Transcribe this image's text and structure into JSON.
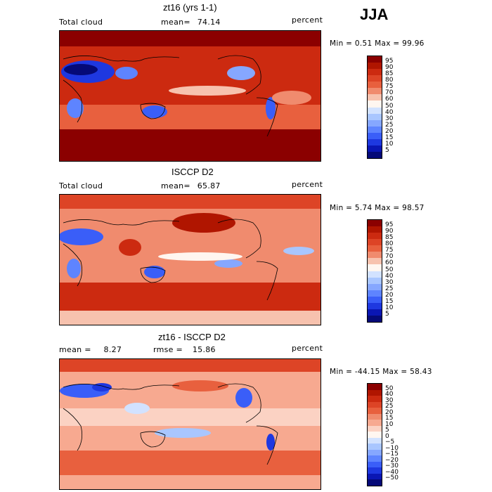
{
  "season": "JJA",
  "panels": [
    {
      "title": "zt16 (yrs 1-1)",
      "left_label": "Total cloud",
      "center_label": "mean=",
      "center_value": "74.14",
      "right_label": "percent",
      "minmax": "Min =    0.51 Max =   99.96",
      "colorbar": {
        "levels": [
          "95",
          "90",
          "85",
          "80",
          "75",
          "70",
          "60",
          "50",
          "40",
          "30",
          "25",
          "20",
          "15",
          "10",
          "5"
        ],
        "colors": [
          "#8b0000",
          "#b01500",
          "#cc2a10",
          "#dd4426",
          "#e8603e",
          "#f08b6e",
          "#f7c2ae",
          "#fff6f0",
          "#d2e2ff",
          "#a9c6ff",
          "#86a7ff",
          "#5e84ff",
          "#3a5ef8",
          "#1e38e0",
          "#0a16b4",
          "#050a78"
        ]
      }
    },
    {
      "title": "ISCCP D2",
      "left_label": "Total cloud",
      "center_label": "mean=",
      "center_value": "65.87",
      "right_label": "percent",
      "minmax": "Min =    5.74 Max =   98.57",
      "colorbar": {
        "levels": [
          "95",
          "90",
          "85",
          "80",
          "75",
          "70",
          "60",
          "50",
          "40",
          "30",
          "25",
          "20",
          "15",
          "10",
          "5"
        ],
        "colors": [
          "#8b0000",
          "#b01500",
          "#cc2a10",
          "#dd4426",
          "#e8603e",
          "#f08b6e",
          "#f7c2ae",
          "#fff6f0",
          "#d2e2ff",
          "#a9c6ff",
          "#86a7ff",
          "#5e84ff",
          "#3a5ef8",
          "#1e38e0",
          "#0a16b4",
          "#050a78"
        ]
      }
    },
    {
      "title": "zt16 - ISCCP D2",
      "left_label": "mean =",
      "left_value": "8.27",
      "center_label": "rmse =",
      "center_value": "15.86",
      "right_label": "percent",
      "minmax": "Min =  -44.15 Max =   58.43",
      "colorbar": {
        "levels": [
          "50",
          "40",
          "30",
          "25",
          "20",
          "15",
          "10",
          "5",
          "0",
          "−5",
          "−10",
          "−15",
          "−20",
          "−30",
          "−40",
          "−50"
        ],
        "colors": [
          "#8b0000",
          "#b01500",
          "#cc2a10",
          "#dd4426",
          "#e8603e",
          "#f08b6e",
          "#f7a990",
          "#fbd2c3",
          "#fff6f0",
          "#d2e2ff",
          "#a9c6ff",
          "#86a7ff",
          "#5e84ff",
          "#3a5ef8",
          "#1e38e0",
          "#0a16b4",
          "#050a78"
        ]
      }
    }
  ],
  "colors": {
    "deep_red": "#8b0000",
    "red": "#dd4426",
    "white": "#fff6f0",
    "blue": "#3a5ef8",
    "deep_blue": "#050a78"
  }
}
